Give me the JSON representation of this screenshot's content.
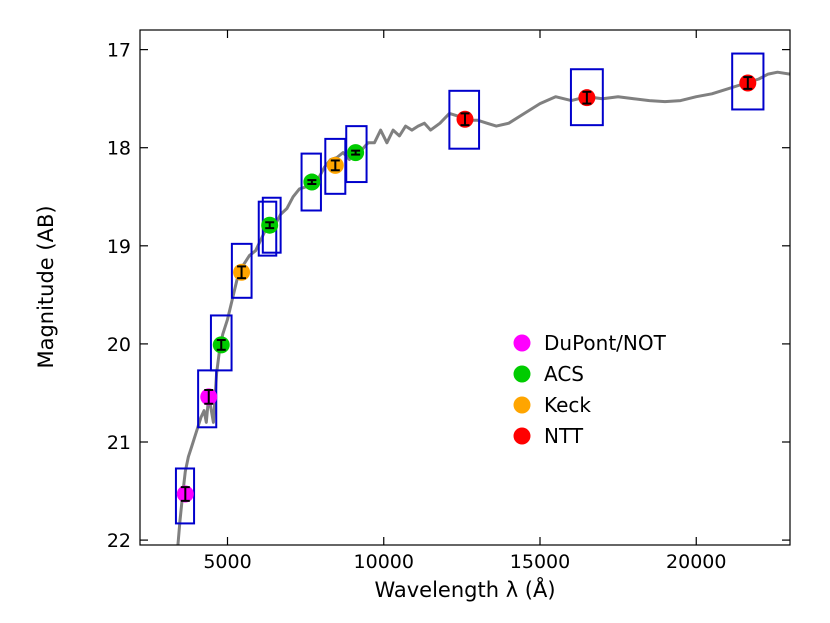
{
  "chart_data": {
    "type": "scatter",
    "title": "",
    "xlabel": "Wavelength  λ (Å)",
    "ylabel": "Magnitude (AB)",
    "xlim": [
      2200,
      23000
    ],
    "ylim": [
      22.05,
      16.8
    ],
    "y_inverted": true,
    "grid": false,
    "legend_position": "center-right",
    "x_ticks": [
      5000,
      10000,
      15000,
      20000
    ],
    "x_tick_labels": [
      "5000",
      "10000",
      "15000",
      "20000"
    ],
    "y_ticks": [
      17,
      18,
      19,
      20,
      21,
      22
    ],
    "y_tick_labels": [
      "17",
      "18",
      "19",
      "20",
      "21",
      "22"
    ],
    "colors": {
      "model": "#808080",
      "box": "#0000cc",
      "errorbar": "#000000"
    },
    "legend": [
      {
        "name": "DuPont/NOT",
        "color": "#ff00ff"
      },
      {
        "name": "ACS",
        "color": "#00cc00"
      },
      {
        "name": "Keck",
        "color": "#ffa500"
      },
      {
        "name": "NTT",
        "color": "#ff0000"
      }
    ],
    "series": [
      {
        "name": "DuPont/NOT",
        "color": "#ff00ff",
        "points": [
          {
            "x": 3650,
            "y": 21.53,
            "yerr": 0.07
          },
          {
            "x": 4400,
            "y": 20.54,
            "yerr": 0.07
          }
        ]
      },
      {
        "name": "ACS",
        "color": "#00cc00",
        "points": [
          {
            "x": 4800,
            "y": 20.01,
            "yerr": 0.05
          },
          {
            "x": 6350,
            "y": 18.79,
            "yerr": 0.03
          },
          {
            "x": 7700,
            "y": 18.35,
            "yerr": 0.02
          },
          {
            "x": 9100,
            "y": 18.05,
            "yerr": 0.02
          }
        ]
      },
      {
        "name": "Keck",
        "color": "#ffa500",
        "points": [
          {
            "x": 5450,
            "y": 19.27,
            "yerr": 0.06
          },
          {
            "x": 8450,
            "y": 18.18,
            "yerr": 0.05
          }
        ]
      },
      {
        "name": "NTT",
        "color": "#ff0000",
        "points": [
          {
            "x": 12600,
            "y": 17.71,
            "yerr": 0.06
          },
          {
            "x": 16500,
            "y": 17.49,
            "yerr": 0.06
          },
          {
            "x": 21650,
            "y": 17.34,
            "yerr": 0.06
          }
        ]
      }
    ],
    "bands": [
      {
        "x0": 3350,
        "x1": 3930,
        "y0": 21.27,
        "y1": 21.83
      },
      {
        "x0": 4060,
        "x1": 4640,
        "y0": 20.27,
        "y1": 20.85
      },
      {
        "x0": 4470,
        "x1": 5130,
        "y0": 19.71,
        "y1": 20.27
      },
      {
        "x0": 5140,
        "x1": 5770,
        "y0": 18.98,
        "y1": 19.53
      },
      {
        "x0": 6000,
        "x1": 6560,
        "y0": 18.55,
        "y1": 19.1
      },
      {
        "x0": 6130,
        "x1": 6700,
        "y0": 18.51,
        "y1": 19.07
      },
      {
        "x0": 7370,
        "x1": 7990,
        "y0": 18.06,
        "y1": 18.64
      },
      {
        "x0": 8130,
        "x1": 8770,
        "y0": 17.91,
        "y1": 18.47
      },
      {
        "x0": 8800,
        "x1": 9450,
        "y0": 17.78,
        "y1": 18.35
      },
      {
        "x0": 12100,
        "x1": 13050,
        "y0": 17.42,
        "y1": 18.01
      },
      {
        "x0": 15990,
        "x1": 17010,
        "y0": 17.2,
        "y1": 17.77
      },
      {
        "x0": 21150,
        "x1": 22150,
        "y0": 17.04,
        "y1": 17.61
      }
    ],
    "model_curve": {
      "x": [
        3400,
        3480,
        3560,
        3650,
        3750,
        3850,
        3950,
        4050,
        4150,
        4250,
        4320,
        4380,
        4450,
        4550,
        4650,
        4750,
        4850,
        5000,
        5150,
        5300,
        5500,
        5700,
        5900,
        6050,
        6200,
        6350,
        6500,
        6700,
        6900,
        7100,
        7300,
        7500,
        7700,
        7900,
        8100,
        8300,
        8500,
        8700,
        8900,
        9100,
        9300,
        9500,
        9700,
        9900,
        10100,
        10300,
        10500,
        10700,
        10900,
        11100,
        11300,
        11500,
        11800,
        12100,
        12400,
        12700,
        13000,
        13300,
        13600,
        14000,
        14500,
        15000,
        15500,
        16000,
        16500,
        17000,
        17500,
        18000,
        18500,
        19000,
        19500,
        20000,
        20500,
        21000,
        21500,
        22000,
        22300,
        22600,
        23000
      ],
      "y": [
        22.1,
        21.8,
        21.55,
        21.3,
        21.15,
        21.05,
        20.95,
        20.85,
        20.75,
        20.68,
        20.8,
        20.6,
        20.62,
        20.8,
        20.3,
        20.05,
        19.9,
        19.75,
        19.55,
        19.35,
        19.2,
        19.1,
        19.05,
        18.95,
        18.85,
        18.82,
        18.8,
        18.68,
        18.62,
        18.5,
        18.42,
        18.4,
        18.3,
        18.32,
        18.2,
        18.12,
        18.1,
        18.05,
        18.12,
        18.03,
        18.02,
        17.95,
        17.95,
        17.82,
        17.95,
        17.82,
        17.88,
        17.78,
        17.82,
        17.78,
        17.75,
        17.82,
        17.75,
        17.65,
        17.68,
        17.72,
        17.72,
        17.75,
        17.78,
        17.75,
        17.65,
        17.55,
        17.48,
        17.52,
        17.48,
        17.5,
        17.48,
        17.5,
        17.52,
        17.53,
        17.52,
        17.48,
        17.45,
        17.4,
        17.35,
        17.3,
        17.25,
        17.23,
        17.25
      ]
    }
  }
}
